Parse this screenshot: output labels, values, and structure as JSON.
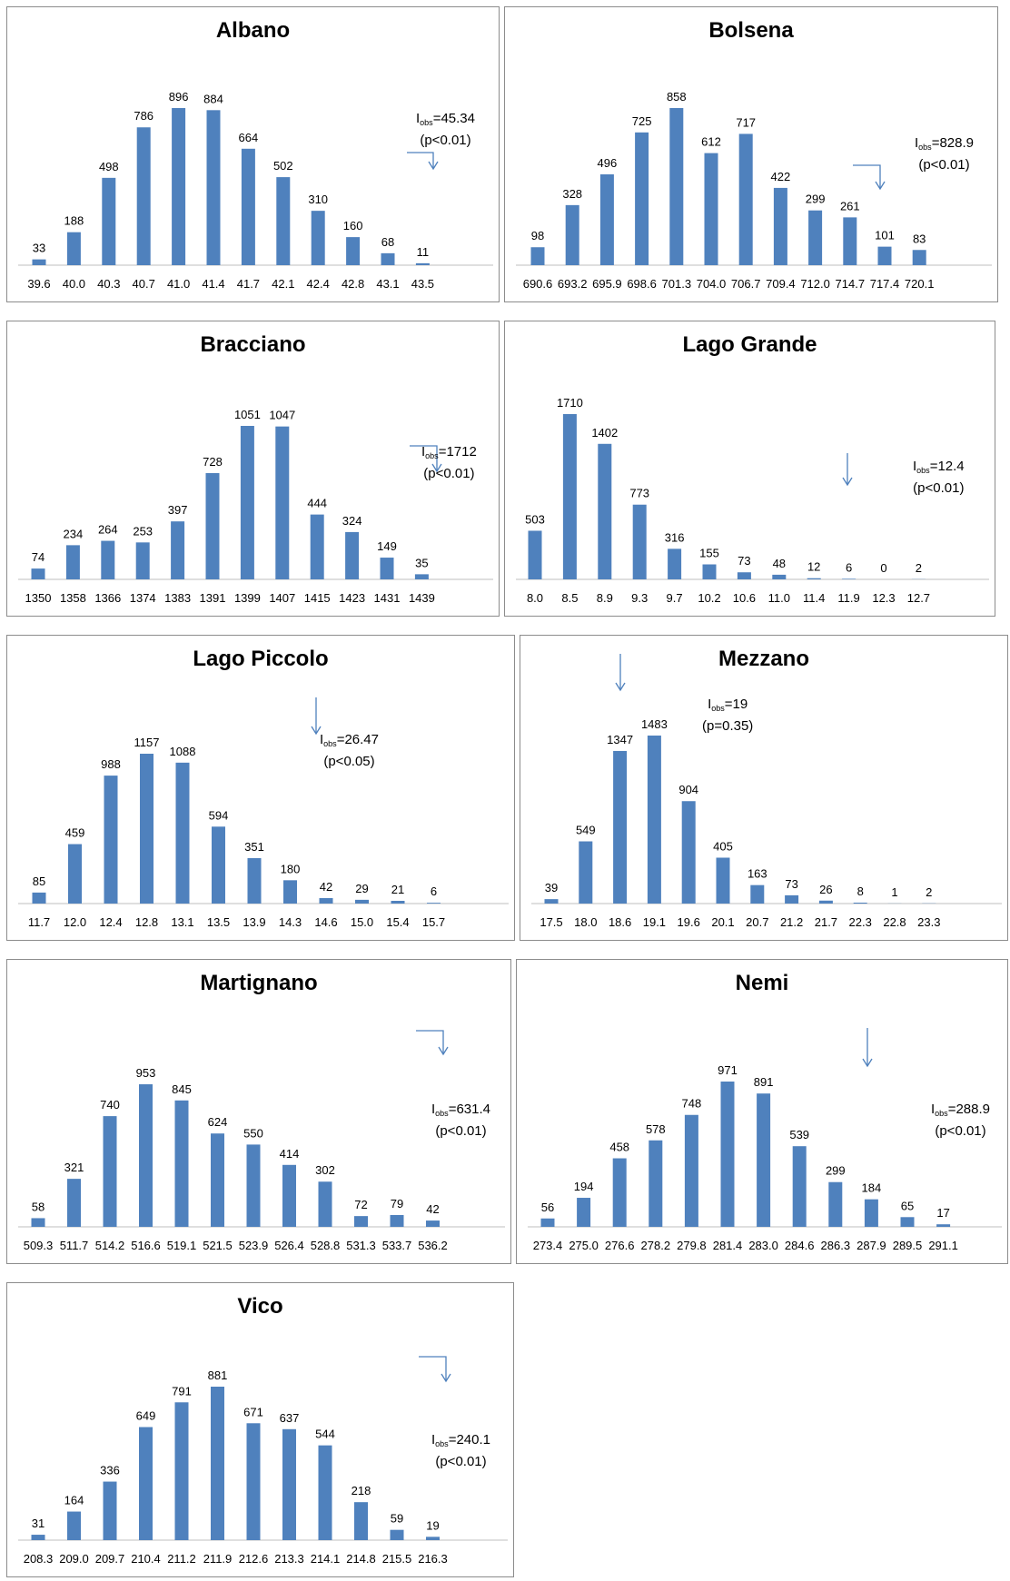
{
  "chart_data": [
    {
      "type": "bar",
      "title": "Albano",
      "categories": [
        "39.6",
        "40.0",
        "40.3",
        "40.7",
        "41.0",
        "41.4",
        "41.7",
        "42.1",
        "42.4",
        "42.8",
        "43.1",
        "43.5"
      ],
      "values": [
        33,
        188,
        498,
        786,
        896,
        884,
        664,
        502,
        310,
        160,
        68,
        11
      ],
      "annotation": {
        "label": "I",
        "sub": "obs",
        "value": "=45.34",
        "p": "(p<0.01)"
      }
    },
    {
      "type": "bar",
      "title": "Bolsena",
      "categories": [
        "690.6",
        "693.2",
        "695.9",
        "698.6",
        "701.3",
        "704.0",
        "706.7",
        "709.4",
        "712.0",
        "714.7",
        "717.4",
        "720.1"
      ],
      "values": [
        98,
        328,
        496,
        725,
        858,
        612,
        717,
        422,
        299,
        261,
        101,
        83
      ],
      "annotation": {
        "label": "I",
        "sub": "obs",
        "value": "=828.9",
        "p": "(p<0.01)"
      }
    },
    {
      "type": "bar",
      "title": "Bracciano",
      "categories": [
        "1350",
        "1358",
        "1366",
        "1374",
        "1383",
        "1391",
        "1399",
        "1407",
        "1415",
        "1423",
        "1431",
        "1439"
      ],
      "values": [
        74,
        234,
        264,
        253,
        397,
        728,
        1051,
        1047,
        444,
        324,
        149,
        35
      ],
      "annotation": {
        "label": "I",
        "sub": "obs",
        "value": "=1712",
        "p": "(p<0.01)"
      }
    },
    {
      "type": "bar",
      "title": "Lago Grande",
      "categories": [
        "8.0",
        "8.5",
        "8.9",
        "9.3",
        "9.7",
        "10.2",
        "10.6",
        "11.0",
        "11.4",
        "11.9",
        "12.3",
        "12.7"
      ],
      "values": [
        503,
        1710,
        1402,
        773,
        316,
        155,
        73,
        48,
        12,
        6,
        0,
        2
      ],
      "annotation": {
        "label": "I",
        "sub": "obs",
        "value": "=12.4",
        "p": "(p<0.01)"
      }
    },
    {
      "type": "bar",
      "title": "Lago Piccolo",
      "categories": [
        "11.7",
        "12.0",
        "12.4",
        "12.8",
        "13.1",
        "13.5",
        "13.9",
        "14.3",
        "14.6",
        "15.0",
        "15.4",
        "15.7"
      ],
      "values": [
        85,
        459,
        988,
        1157,
        1088,
        594,
        351,
        180,
        42,
        29,
        21,
        6
      ],
      "annotation": {
        "label": "I",
        "sub": "obs",
        "value": "=26.47",
        "p": "(p<0.05)"
      }
    },
    {
      "type": "bar",
      "title": "Mezzano",
      "categories": [
        "17.5",
        "18.0",
        "18.6",
        "19.1",
        "19.6",
        "20.1",
        "20.7",
        "21.2",
        "21.7",
        "22.3",
        "22.8",
        "23.3"
      ],
      "values": [
        39,
        549,
        1347,
        1483,
        904,
        405,
        163,
        73,
        26,
        8,
        1,
        2
      ],
      "annotation": {
        "label": "I",
        "sub": "obs",
        "value": "=19",
        "p": "(p=0.35)"
      }
    },
    {
      "type": "bar",
      "title": "Martignano",
      "categories": [
        "509.3",
        "511.7",
        "514.2",
        "516.6",
        "519.1",
        "521.5",
        "523.9",
        "526.4",
        "528.8",
        "531.3",
        "533.7",
        "536.2"
      ],
      "values": [
        58,
        321,
        740,
        953,
        845,
        624,
        550,
        414,
        302,
        72,
        79,
        42
      ],
      "annotation": {
        "label": "I",
        "sub": "obs",
        "value": "=631.4",
        "p": "(p<0.01)"
      }
    },
    {
      "type": "bar",
      "title": "Nemi",
      "categories": [
        "273.4",
        "275.0",
        "276.6",
        "278.2",
        "279.8",
        "281.4",
        "283.0",
        "284.6",
        "286.3",
        "287.9",
        "289.5",
        "291.1"
      ],
      "values": [
        56,
        194,
        458,
        578,
        748,
        971,
        891,
        539,
        299,
        184,
        65,
        17
      ],
      "annotation": {
        "label": "I",
        "sub": "obs",
        "value": "=288.9",
        "p": "(p<0.01)"
      }
    },
    {
      "type": "bar",
      "title": "Vico",
      "categories": [
        "208.3",
        "209.0",
        "209.7",
        "210.4",
        "211.2",
        "211.9",
        "212.6",
        "213.3",
        "214.1",
        "214.8",
        "215.5",
        "216.3"
      ],
      "values": [
        31,
        164,
        336,
        649,
        791,
        881,
        671,
        637,
        544,
        218,
        59,
        19
      ],
      "annotation": {
        "label": "I",
        "sub": "obs",
        "value": "=240.1",
        "p": "(p<0.01)"
      }
    }
  ],
  "colors": {
    "bar": "#4f81bd",
    "arrow": "#4f81bd",
    "axis": "#bfbfbf",
    "border": "#8c8c8c"
  }
}
